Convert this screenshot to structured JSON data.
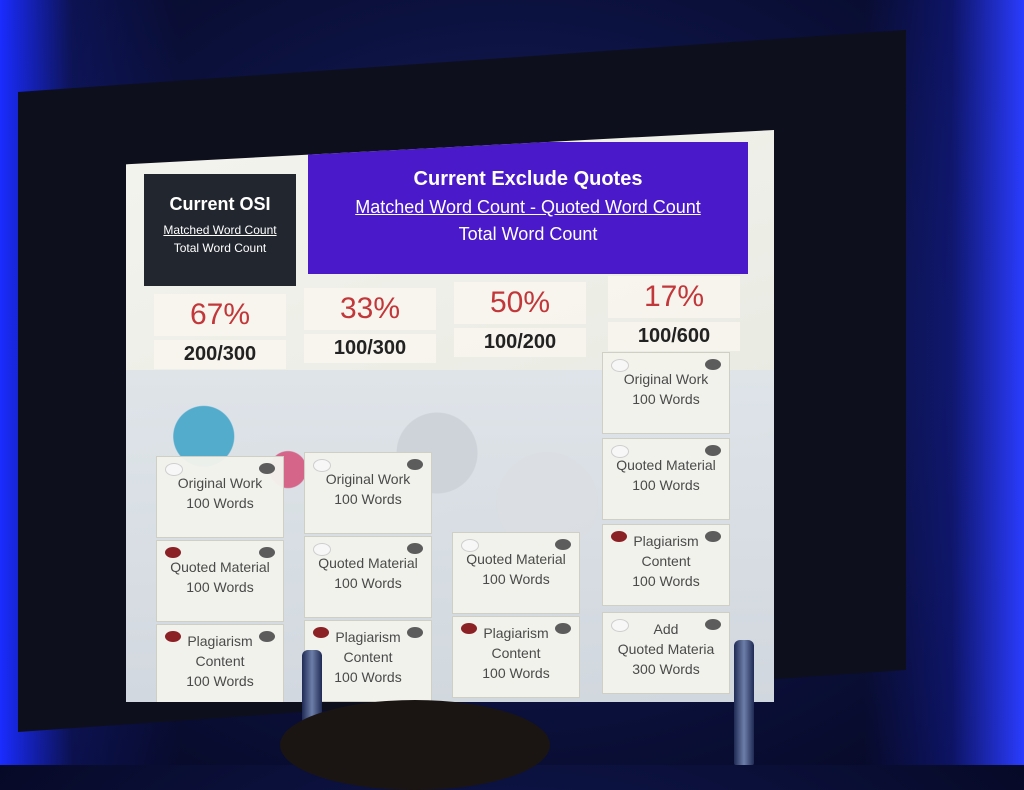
{
  "header_osi": {
    "title": "Current OSI",
    "numerator": "Matched Word Count",
    "denominator": "Total Word Count"
  },
  "header_exclude": {
    "title": "Current Exclude Quotes",
    "numerator": "Matched Word Count - Quoted Word Count",
    "denominator": "Total Word Count"
  },
  "columns": [
    {
      "percent": "67%",
      "ratio": "200/300",
      "boxes": [
        {
          "line1": "Original Work",
          "line2": "100 Words",
          "line3": "",
          "dot": "white"
        },
        {
          "line1": "Quoted Material",
          "line2": "100 Words",
          "line3": "",
          "dot": "red"
        },
        {
          "line1": "Plagiarism",
          "line2": "Content",
          "line3": "100 Words",
          "dot": "red"
        }
      ]
    },
    {
      "percent": "33%",
      "ratio": "100/300",
      "boxes": [
        {
          "line1": "Original Work",
          "line2": "100 Words",
          "line3": "",
          "dot": "white"
        },
        {
          "line1": "Quoted Material",
          "line2": "100 Words",
          "line3": "",
          "dot": "white"
        },
        {
          "line1": "Plagiarism",
          "line2": "Content",
          "line3": "100 Words",
          "dot": "red"
        }
      ]
    },
    {
      "percent": "50%",
      "ratio": "100/200",
      "boxes": [
        {
          "line1": "Quoted Material",
          "line2": "100 Words",
          "line3": "",
          "dot": "white"
        },
        {
          "line1": "Plagiarism",
          "line2": "Content",
          "line3": "100 Words",
          "dot": "red"
        }
      ]
    },
    {
      "percent": "17%",
      "ratio": "100/600",
      "boxes": [
        {
          "line1": "Original Work",
          "line2": "100 Words",
          "line3": "",
          "dot": "white"
        },
        {
          "line1": "Quoted Material",
          "line2": "100 Words",
          "line3": "",
          "dot": "white"
        },
        {
          "line1": "Plagiarism",
          "line2": "Content",
          "line3": "100 Words",
          "dot": "red"
        },
        {
          "line1": "Add",
          "line2": "Quoted Materia",
          "line3": "300 Words",
          "dot": "white"
        }
      ]
    }
  ]
}
